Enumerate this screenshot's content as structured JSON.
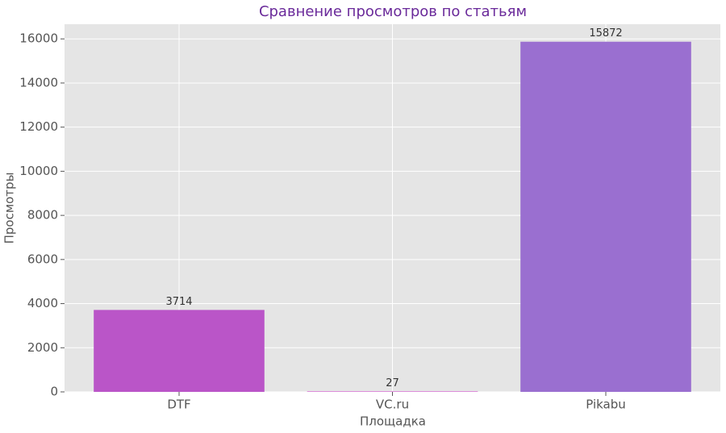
{
  "chart_data": {
    "type": "bar",
    "title": "Сравнение просмотров по статьям",
    "x_label": "Площадка",
    "y_label": "Просмотры",
    "categories": [
      "DTF",
      "VC.ru",
      "Pikabu"
    ],
    "values": [
      3714,
      27,
      15872
    ],
    "colors": [
      "#ba55c8",
      "#da70d6",
      "#9a6fd0"
    ],
    "ylim": [
      0,
      16666
    ],
    "yticks": [
      0,
      2000,
      4000,
      6000,
      8000,
      10000,
      12000,
      14000,
      16000
    ],
    "grid": true
  }
}
